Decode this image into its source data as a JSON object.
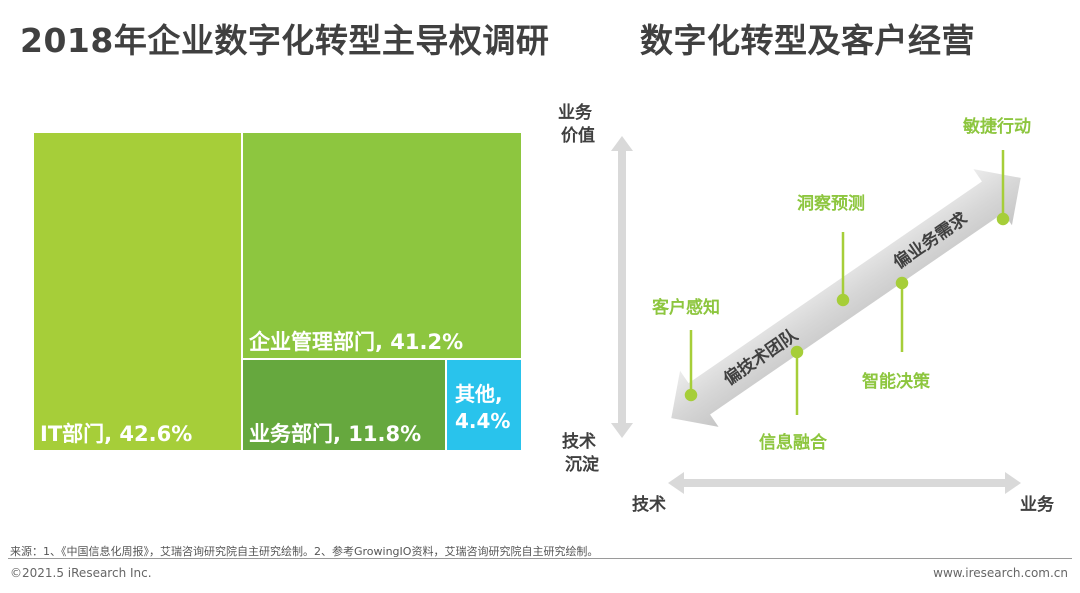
{
  "titles": {
    "left": "2018年企业数字化转型主导权调研",
    "right": "数字化转型及客户经营"
  },
  "chart_data": [
    {
      "type": "treemap",
      "title": "2018年企业数字化转型主导权调研",
      "unit": "%",
      "cells": [
        {
          "label": "IT部门, 42.6%",
          "name": "IT部门",
          "value": 42.6,
          "color": "#a6ce39"
        },
        {
          "label": "企业管理部门, 41.2%",
          "name": "企业管理部门",
          "value": 41.2,
          "color": "#8dc63f"
        },
        {
          "label": "业务部门, 11.8%",
          "name": "业务部门",
          "value": 11.8,
          "color": "#66a83e"
        },
        {
          "label": "其他,\n4.4%",
          "name": "其他",
          "value": 4.4,
          "color": "#29c3ec"
        }
      ]
    }
  ],
  "diagram": {
    "title": "数字化转型及客户经营",
    "y_axis": {
      "top_label": "业务\n价值",
      "bottom_label": "技术\n沉淀"
    },
    "x_axis": {
      "left_label": "技术",
      "right_label": "业务"
    },
    "arrow_left_text": "偏技术团队",
    "arrow_right_text": "偏业务需求",
    "milestones": [
      "客户感知",
      "信息融合",
      "洞察预测",
      "智能决策",
      "敏捷行动"
    ]
  },
  "footer": {
    "source": "来源：1、《中国信息化周报》，艾瑞咨询研究院自主研究绘制。2、参考GrowingIO资料，艾瑞咨询研究院自主研究绘制。",
    "copyright": "©2021.5 iResearch Inc.",
    "website": "www.iresearch.com.cn"
  }
}
